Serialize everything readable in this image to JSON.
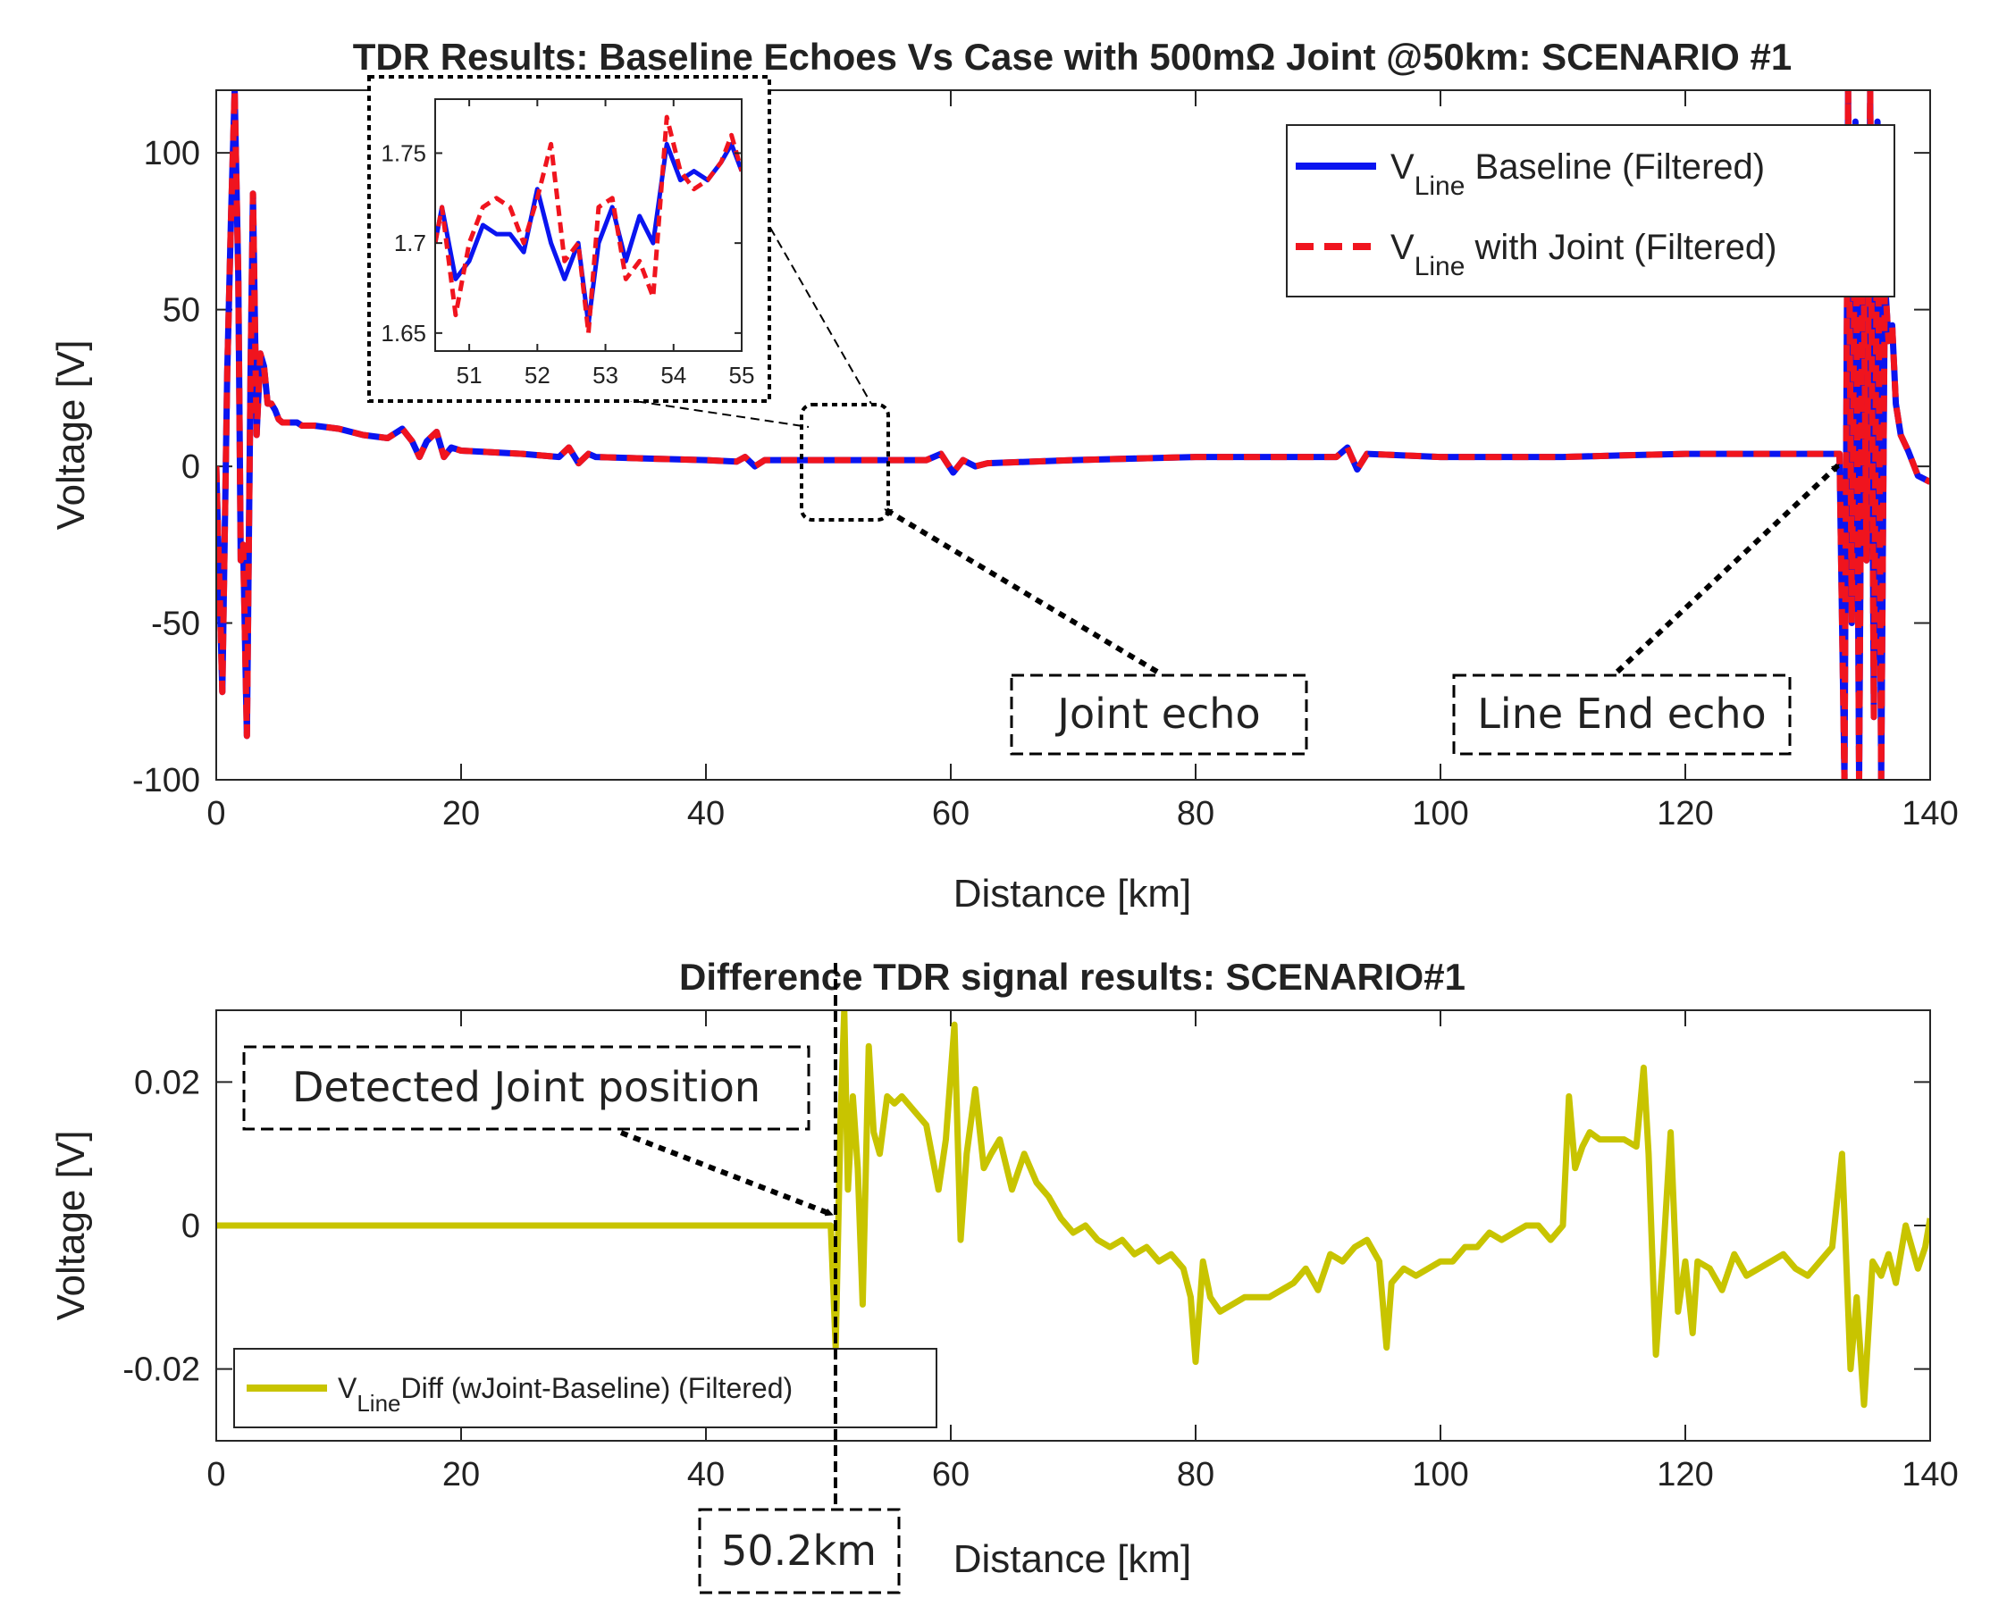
{
  "chart_data": [
    {
      "type": "line",
      "title": "TDR Results: Baseline Echoes Vs Case with 500mΩ Joint @50km: SCENARIO #1",
      "xlabel": "Distance [km]",
      "ylabel": "Voltage [V]",
      "xlim": [
        0,
        140
      ],
      "ylim": [
        -100,
        120
      ],
      "xticks": [
        0,
        20,
        40,
        60,
        80,
        100,
        120,
        140
      ],
      "xtick_labels": [
        "0",
        "20",
        "40",
        "60",
        "80",
        "100",
        "120",
        "140"
      ],
      "yticks": [
        -100,
        -50,
        0,
        50,
        100
      ],
      "ytick_labels": [
        "-100",
        "-50",
        "0",
        "50",
        "100"
      ],
      "legend": {
        "position": "top-right",
        "entries": [
          {
            "prefix": "V",
            "sub": "Line",
            "suffix": " Baseline (Filtered)"
          },
          {
            "prefix": "V",
            "sub": "Line",
            "suffix": " with Joint (Filtered)"
          }
        ]
      },
      "series": [
        {
          "name": "V_Line Baseline (Filtered)",
          "color": "#0a14f0",
          "style": "solid",
          "x": [
            0,
            0.5,
            0.9,
            1.2,
            1.5,
            1.8,
            2.0,
            2.2,
            2.5,
            2.8,
            3.0,
            3.3,
            3.6,
            3.9,
            4.2,
            4.5,
            4.8,
            5.1,
            5.4,
            5.8,
            6.2,
            6.6,
            7.0,
            8,
            10,
            12,
            14,
            15.2,
            16,
            16.6,
            17.2,
            18,
            18.6,
            19.2,
            20,
            25,
            28,
            28.8,
            29.6,
            30.4,
            31,
            35,
            40,
            42.5,
            43.2,
            44,
            44.8,
            46,
            50,
            55,
            58,
            59.2,
            60.2,
            61.0,
            62.0,
            63,
            70,
            80,
            90,
            91.5,
            92.4,
            93.2,
            94,
            100,
            110,
            115,
            120,
            130,
            132,
            132.6,
            133.0,
            133.3,
            133.6,
            133.9,
            134.2,
            134.5,
            134.8,
            135.1,
            135.4,
            135.7,
            136.0,
            136.3,
            136.6,
            136.9,
            137.2,
            137.6,
            138.2,
            139,
            140
          ],
          "y": [
            0,
            -72,
            30,
            78,
            120,
            60,
            -30,
            -25,
            -86,
            30,
            87,
            10,
            36,
            32,
            20,
            20,
            18,
            15,
            14,
            14,
            14,
            14,
            13,
            13,
            12,
            10,
            9,
            12,
            8,
            3,
            8,
            11,
            3,
            6,
            5,
            4,
            3,
            6,
            1,
            4,
            3,
            2.5,
            2,
            1.5,
            3,
            0,
            2,
            2,
            2,
            2,
            2,
            4,
            -2,
            2,
            0,
            1,
            2,
            3,
            3,
            3,
            6,
            -1,
            4,
            3,
            3,
            3.5,
            4,
            4,
            4,
            4,
            -100,
            120,
            -50,
            110,
            -100,
            90,
            -30,
            120,
            -80,
            110,
            -100,
            60,
            40,
            45,
            20,
            10,
            5,
            -3,
            -5
          ]
        },
        {
          "name": "V_Line with Joint (Filtered)",
          "color": "#f0141e",
          "style": "dashed",
          "x": [
            0,
            0.5,
            0.9,
            1.2,
            1.5,
            1.8,
            2.0,
            2.2,
            2.5,
            2.8,
            3.0,
            3.3,
            3.6,
            3.9,
            4.2,
            4.5,
            4.8,
            5.1,
            5.4,
            5.8,
            6.2,
            6.6,
            7.0,
            8,
            10,
            12,
            14,
            15.2,
            16,
            16.6,
            17.2,
            18,
            18.6,
            19.2,
            20,
            25,
            28,
            28.8,
            29.6,
            30.4,
            31,
            35,
            40,
            42.5,
            43.2,
            44,
            44.8,
            46,
            50,
            55,
            58,
            59.2,
            60.2,
            61.0,
            62.0,
            63,
            70,
            80,
            90,
            91.5,
            92.4,
            93.2,
            94,
            100,
            110,
            115,
            120,
            130,
            132,
            132.6,
            133.0,
            133.3,
            133.6,
            133.9,
            134.2,
            134.5,
            134.8,
            135.1,
            135.4,
            135.7,
            136.0,
            136.3,
            136.6,
            136.9,
            137.2,
            137.6,
            138.2,
            139,
            140
          ],
          "y": [
            0,
            -72,
            30,
            78,
            120,
            60,
            -30,
            -25,
            -86,
            30,
            87,
            10,
            36,
            32,
            20,
            20,
            18,
            15,
            14,
            14,
            14,
            14,
            13,
            13,
            12,
            10,
            9,
            12,
            8,
            3,
            8,
            11,
            3,
            6,
            5,
            4,
            3,
            6,
            1,
            4,
            3,
            2.5,
            2,
            1.5,
            3,
            0,
            2,
            2,
            2,
            2,
            2,
            4,
            -2,
            2,
            0,
            1,
            2,
            3,
            3,
            3,
            6,
            -1,
            4,
            3,
            3,
            3.5,
            4,
            4,
            4,
            4,
            -100,
            120,
            -50,
            110,
            -100,
            90,
            -30,
            120,
            -80,
            110,
            -100,
            60,
            40,
            45,
            20,
            10,
            5,
            -3,
            -5
          ]
        }
      ],
      "inset": {
        "xlim": [
          50.5,
          55
        ],
        "ylim": [
          1.64,
          1.78
        ],
        "xticks": [
          51,
          52,
          53,
          54,
          55
        ],
        "xtick_labels": [
          "51",
          "52",
          "53",
          "54",
          "55"
        ],
        "yticks": [
          1.65,
          1.7,
          1.75
        ],
        "ytick_labels": [
          "1.65",
          "1.7",
          "1.75"
        ],
        "series": [
          {
            "name": "V_Line Baseline (Filtered)",
            "color": "#0a14f0",
            "style": "solid",
            "x": [
              50.5,
              50.6,
              50.8,
              51.0,
              51.2,
              51.4,
              51.6,
              51.8,
              52.0,
              52.2,
              52.4,
              52.6,
              52.75,
              52.9,
              53.1,
              53.3,
              53.5,
              53.7,
              53.9,
              54.1,
              54.3,
              54.5,
              54.7,
              54.85,
              55.0
            ],
            "y": [
              1.7,
              1.72,
              1.68,
              1.69,
              1.71,
              1.705,
              1.705,
              1.695,
              1.73,
              1.7,
              1.68,
              1.7,
              1.655,
              1.7,
              1.72,
              1.69,
              1.715,
              1.7,
              1.755,
              1.735,
              1.74,
              1.735,
              1.745,
              1.755,
              1.74
            ]
          },
          {
            "name": "V_Line with Joint (Filtered)",
            "color": "#f0141e",
            "style": "dashed",
            "x": [
              50.5,
              50.6,
              50.8,
              51.0,
              51.2,
              51.4,
              51.6,
              51.8,
              52.0,
              52.2,
              52.4,
              52.6,
              52.75,
              52.9,
              53.1,
              53.3,
              53.5,
              53.7,
              53.9,
              54.1,
              54.3,
              54.5,
              54.7,
              54.85,
              55.0
            ],
            "y": [
              1.7,
              1.72,
              1.66,
              1.7,
              1.72,
              1.725,
              1.72,
              1.7,
              1.725,
              1.755,
              1.69,
              1.7,
              1.65,
              1.72,
              1.725,
              1.68,
              1.69,
              1.67,
              1.77,
              1.74,
              1.73,
              1.735,
              1.745,
              1.76,
              1.74
            ]
          }
        ]
      },
      "annotations": [
        "Joint echo",
        "Line End echo"
      ]
    },
    {
      "type": "line",
      "title": "Difference TDR signal results:  SCENARIO#1",
      "xlabel": "Distance [km]",
      "ylabel": "Voltage [V]",
      "xlim": [
        0,
        140
      ],
      "ylim": [
        -0.03,
        0.03
      ],
      "xticks": [
        0,
        20,
        40,
        60,
        80,
        100,
        120,
        140
      ],
      "xtick_labels": [
        "0",
        "20",
        "40",
        "60",
        "80",
        "100",
        "120",
        "140"
      ],
      "yticks": [
        -0.02,
        0,
        0.02
      ],
      "ytick_labels": [
        "-0.02",
        "0",
        "0.02"
      ],
      "legend": {
        "position": "bottom-left",
        "entries": [
          {
            "prefix": "V",
            "sub": "Line",
            "suffix": "Diff (wJoint-Baseline) (Filtered)"
          }
        ]
      },
      "series": [
        {
          "name": "V_LineDiff (wJoint-Baseline) (Filtered)",
          "color": "#c8c400",
          "style": "solid",
          "x": [
            0,
            50.2,
            50.6,
            51.0,
            51.3,
            51.6,
            52.0,
            52.4,
            52.8,
            53.3,
            53.7,
            54.2,
            54.8,
            55.4,
            56.0,
            57.0,
            58.0,
            59.0,
            59.6,
            60.3,
            60.8,
            61.3,
            62.0,
            62.7,
            63.3,
            64.0,
            65.0,
            66.0,
            67.0,
            68.0,
            69.0,
            70.0,
            71.0,
            72.0,
            73.0,
            74.0,
            75.0,
            76.0,
            77.0,
            78.0,
            79.0,
            79.6,
            80.0,
            80.6,
            81.2,
            82.0,
            83.0,
            84.0,
            85.0,
            86.0,
            87.0,
            88.0,
            89.0,
            90.0,
            91.0,
            92.0,
            93.0,
            94.0,
            95.0,
            95.6,
            96.0,
            97.0,
            98.0,
            99.0,
            100.0,
            101.0,
            102.0,
            103.0,
            104.0,
            105.0,
            106.0,
            107.0,
            108.0,
            109.0,
            110.0,
            110.5,
            111.0,
            111.6,
            112.2,
            113.0,
            114.0,
            115.0,
            116.0,
            116.6,
            117.0,
            117.6,
            118.2,
            118.8,
            119.4,
            120.0,
            120.6,
            121.0,
            122.0,
            123.0,
            124.0,
            125.0,
            126.0,
            127.0,
            128.0,
            129.0,
            130.0,
            131.0,
            132.0,
            132.8,
            133.5,
            134.0,
            134.6,
            135.3,
            136.0,
            136.6,
            137.2,
            138.0,
            139.0,
            139.6,
            140.0
          ],
          "y": [
            0,
            0,
            -0.017,
            0.015,
            0.03,
            0.005,
            0.018,
            0.008,
            -0.011,
            0.025,
            0.013,
            0.01,
            0.018,
            0.017,
            0.018,
            0.016,
            0.014,
            0.005,
            0.012,
            0.028,
            -0.002,
            0.01,
            0.019,
            0.008,
            0.01,
            0.012,
            0.005,
            0.01,
            0.006,
            0.004,
            0.001,
            -0.001,
            0.0,
            -0.002,
            -0.003,
            -0.002,
            -0.004,
            -0.003,
            -0.005,
            -0.004,
            -0.006,
            -0.01,
            -0.019,
            -0.005,
            -0.01,
            -0.012,
            -0.011,
            -0.01,
            -0.01,
            -0.01,
            -0.009,
            -0.008,
            -0.006,
            -0.009,
            -0.004,
            -0.005,
            -0.003,
            -0.002,
            -0.005,
            -0.017,
            -0.008,
            -0.006,
            -0.007,
            -0.006,
            -0.005,
            -0.005,
            -0.003,
            -0.003,
            -0.001,
            -0.002,
            -0.001,
            0.0,
            0.0,
            -0.002,
            0.0,
            0.018,
            0.008,
            0.011,
            0.013,
            0.012,
            0.012,
            0.012,
            0.011,
            0.022,
            0.01,
            -0.018,
            -0.004,
            0.013,
            -0.012,
            -0.005,
            -0.015,
            -0.005,
            -0.006,
            -0.009,
            -0.004,
            -0.007,
            -0.006,
            -0.005,
            -0.004,
            -0.006,
            -0.007,
            -0.005,
            -0.003,
            0.01,
            -0.02,
            -0.01,
            -0.025,
            -0.005,
            -0.007,
            -0.004,
            -0.008,
            0.0,
            -0.006,
            -0.003,
            0.001
          ]
        }
      ],
      "annotations": [
        "Detected Joint position",
        "50.2km"
      ]
    }
  ]
}
